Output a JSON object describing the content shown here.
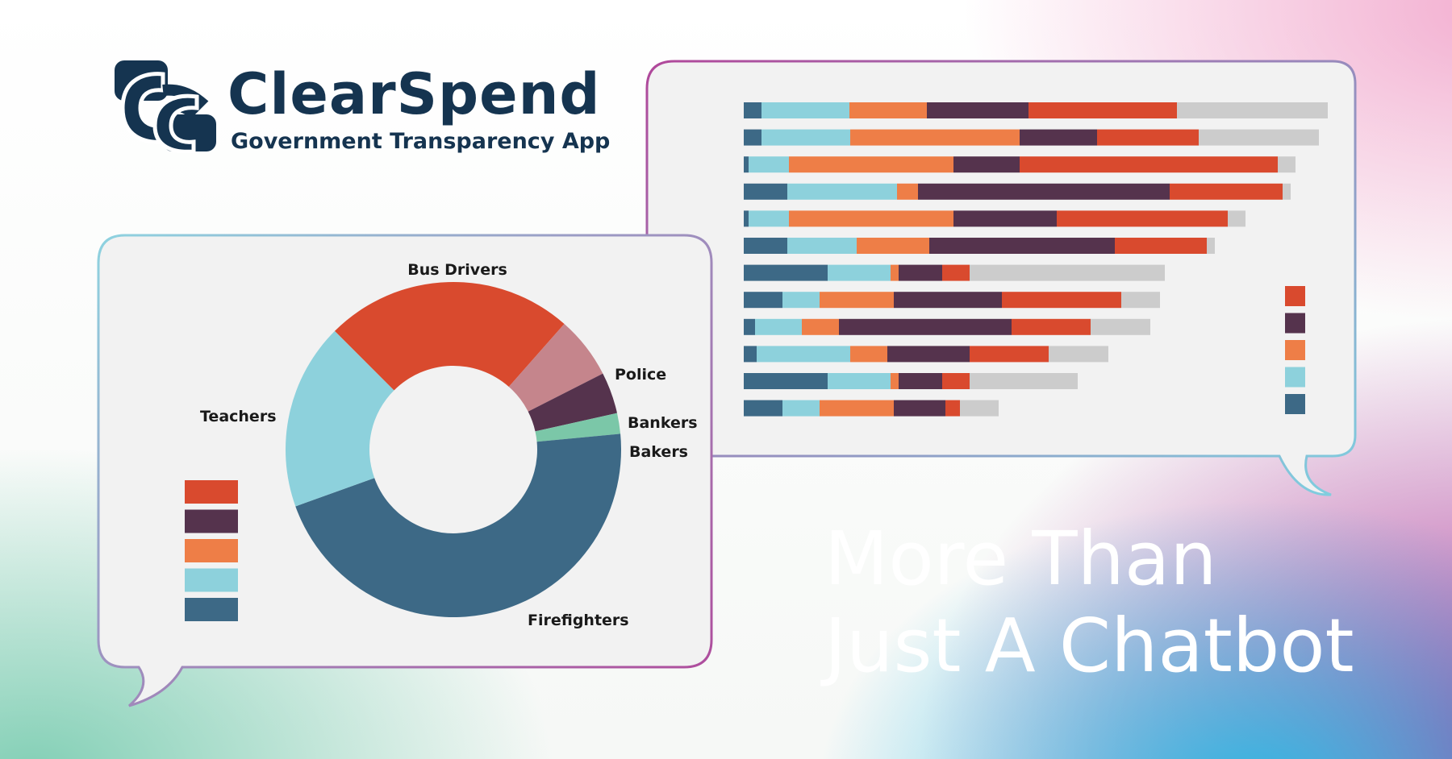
{
  "brand": {
    "name": "ClearSpend",
    "tagline": "Government Transparency App"
  },
  "headline": {
    "line1": "More Than",
    "line2": "Just A Chatbot"
  },
  "colors": {
    "red": "#D94A2E",
    "plum": "#55334D",
    "orange": "#EE7E47",
    "light_blue": "#8DD1DC",
    "steel_blue": "#3D6986",
    "pink": "#C5858C",
    "teal": "#7BC7A8",
    "gray": "#CCCCCC",
    "panel_bg": "#F2F2F2",
    "navy": "#153450"
  },
  "chart_data": [
    {
      "type": "pie",
      "labels": [
        "Bus Drivers",
        "Police",
        "Bankers",
        "Bakers",
        "Firefighters",
        "Teachers"
      ],
      "values": [
        24,
        6,
        4,
        2,
        46,
        18
      ],
      "colors": [
        "#D94A2E",
        "#C5858C",
        "#55334D",
        "#7BC7A8",
        "#3D6986",
        "#8DD1DC"
      ],
      "legend_swatches": [
        "#D94A2E",
        "#55334D",
        "#EE7E47",
        "#8DD1DC",
        "#3D6986"
      ]
    },
    {
      "type": "bar",
      "orientation": "horizontal",
      "stacked": true,
      "series_colors": [
        "#3D6986",
        "#8DD1DC",
        "#EE7E47",
        "#55334D",
        "#D94A2E",
        "#CCCCCC"
      ],
      "rows": [
        [
          22,
          109,
          96,
          126,
          184,
          187
        ],
        [
          22,
          110,
          210,
          96,
          126,
          149
        ],
        [
          6,
          50,
          204,
          82,
          320,
          22
        ],
        [
          54,
          136,
          26,
          312,
          140,
          10
        ],
        [
          6,
          50,
          204,
          128,
          212,
          22
        ],
        [
          54,
          86,
          90,
          230,
          114,
          10
        ],
        [
          104,
          78,
          10,
          54,
          34,
          242
        ],
        [
          48,
          46,
          92,
          134,
          148,
          48
        ],
        [
          14,
          58,
          46,
          214,
          98,
          74
        ],
        [
          16,
          116,
          46,
          102,
          98,
          74
        ],
        [
          104,
          78,
          10,
          54,
          34,
          134
        ],
        [
          48,
          46,
          92,
          64,
          18,
          48
        ]
      ],
      "legend_swatches": [
        "#D94A2E",
        "#55334D",
        "#EE7E47",
        "#8DD1DC",
        "#3D6986"
      ]
    }
  ]
}
